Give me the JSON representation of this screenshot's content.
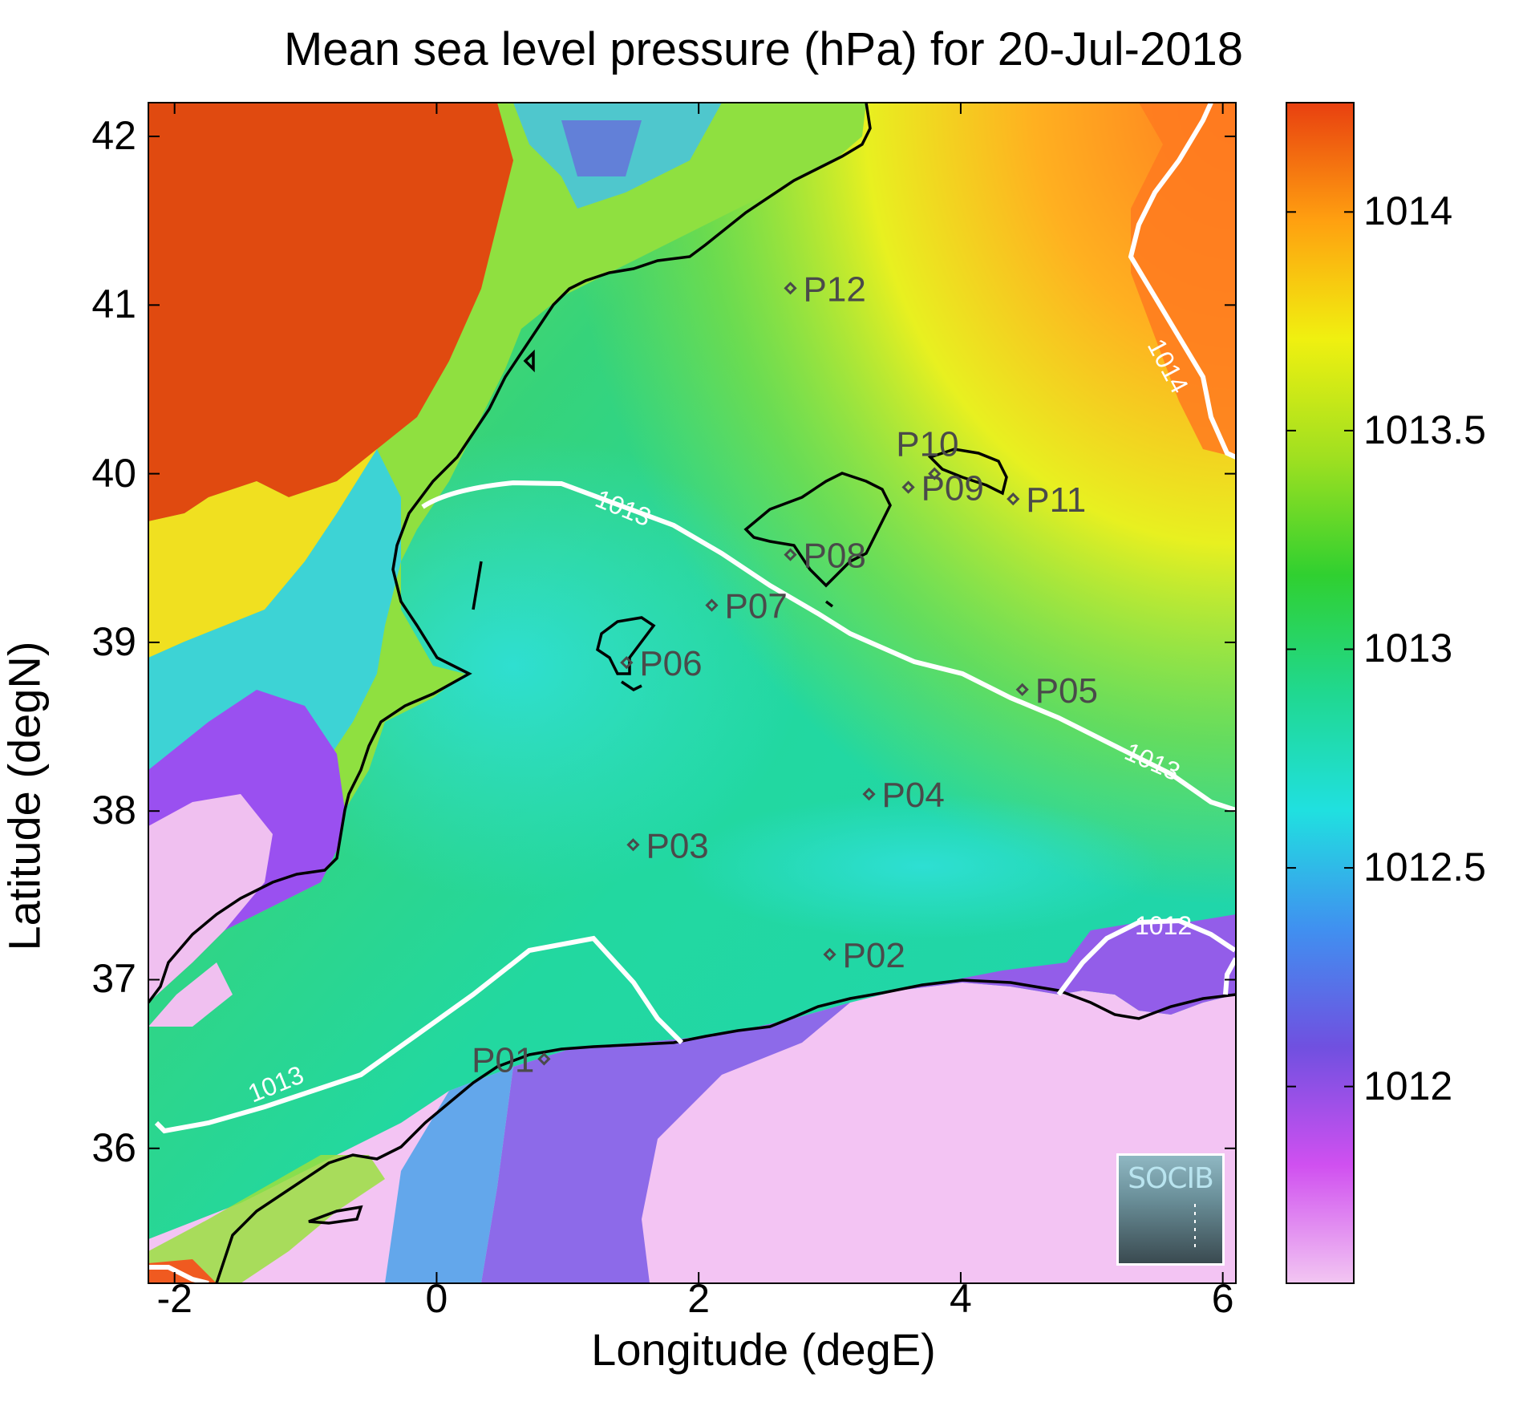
{
  "chart_data": {
    "type": "heatmap",
    "title": "Mean sea level pressure (hPa) for 20-Jul-2018",
    "xlabel": "Longitude (degE)",
    "ylabel": "Latitude (degN)",
    "xlim": [
      -2.2,
      6.1
    ],
    "ylim": [
      35.2,
      42.2
    ],
    "x_ticks": [
      "-2",
      "0",
      "2",
      "4",
      "6"
    ],
    "y_ticks": [
      "36",
      "37",
      "38",
      "39",
      "40",
      "41",
      "42"
    ],
    "colorbar": {
      "range": [
        1011.55,
        1014.25
      ],
      "ticks": [
        "1012",
        "1012.5",
        "1013",
        "1013.5",
        "1014"
      ]
    },
    "contours": [
      {
        "label": "1013"
      },
      {
        "label": "1014"
      },
      {
        "label": "1012"
      }
    ],
    "points": [
      {
        "name": "P01",
        "lon": 0.82,
        "lat": 36.53
      },
      {
        "name": "P02",
        "lon": 3.0,
        "lat": 37.15
      },
      {
        "name": "P03",
        "lon": 1.5,
        "lat": 37.8
      },
      {
        "name": "P04",
        "lon": 3.3,
        "lat": 38.1
      },
      {
        "name": "P05",
        "lon": 4.47,
        "lat": 38.72
      },
      {
        "name": "P06",
        "lon": 1.45,
        "lat": 38.88
      },
      {
        "name": "P07",
        "lon": 2.1,
        "lat": 39.22
      },
      {
        "name": "P08",
        "lon": 2.7,
        "lat": 39.52
      },
      {
        "name": "P09",
        "lon": 3.6,
        "lat": 39.92
      },
      {
        "name": "P10",
        "lon": 3.8,
        "lat": 40.0
      },
      {
        "name": "P11",
        "lon": 4.4,
        "lat": 39.85
      },
      {
        "name": "P12",
        "lon": 2.7,
        "lat": 41.1
      }
    ]
  },
  "logo": {
    "text": "SOCIB"
  }
}
